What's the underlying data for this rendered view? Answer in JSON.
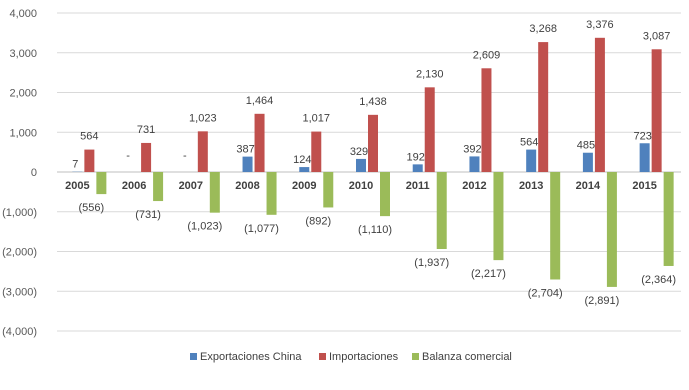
{
  "chart_data": {
    "type": "bar",
    "categories": [
      "2005",
      "2006",
      "2007",
      "2008",
      "2009",
      "2010",
      "2011",
      "2012",
      "2013",
      "2014",
      "2015"
    ],
    "series": [
      {
        "name": "Exportaciones  China",
        "color": "#4f81bd",
        "values": [
          7,
          0,
          0,
          387,
          124,
          329,
          192,
          392,
          564,
          485,
          723
        ],
        "labels": [
          "7",
          "-",
          "-",
          "387",
          "124",
          "329",
          "192",
          "392",
          "564",
          "485",
          "723"
        ]
      },
      {
        "name": "Importaciones",
        "color": "#c0504d",
        "values": [
          564,
          731,
          1023,
          1464,
          1017,
          1438,
          2130,
          2609,
          3268,
          3376,
          3087
        ],
        "labels": [
          "564",
          "731",
          "1,023",
          "1,464",
          "1,017",
          "1,438",
          "2,130",
          "2,609",
          "3,268",
          "3,376",
          "3,087"
        ]
      },
      {
        "name": "Balanza comercial",
        "color": "#9bbb59",
        "values": [
          -556,
          -731,
          -1023,
          -1077,
          -892,
          -1110,
          -1937,
          -2217,
          -2704,
          -2891,
          -2364
        ],
        "labels": [
          "(556)",
          "(731)",
          "(1,023)",
          "(1,077)",
          "(892)",
          "(1,110)",
          "(1,937)",
          "(2,217)",
          "(2,704)",
          "(2,891)",
          "(2,364)"
        ]
      }
    ],
    "ylim": [
      -4000,
      4000
    ],
    "yticks": [
      4000,
      3000,
      2000,
      1000,
      0,
      -1000,
      -2000,
      -3000,
      -4000
    ],
    "ytick_labels": [
      "4,000",
      "3,000",
      "2,000",
      "1,000",
      "0",
      "(1,000)",
      "(2,000)",
      "(3,000)",
      "(4,000)"
    ],
    "grid": true,
    "legend_position": "bottom"
  }
}
